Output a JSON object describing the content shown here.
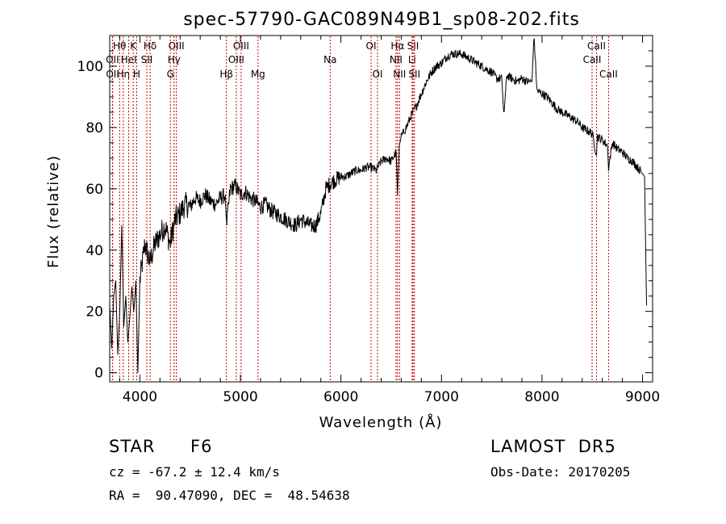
{
  "chart_data": {
    "type": "line",
    "title": "spec-57790-GAC089N49B1_sp08-202.fits",
    "xlabel": "Wavelength (Å)",
    "ylabel": "Flux (relative)",
    "xlim": [
      3700,
      9100
    ],
    "ylim": [
      -3,
      110
    ],
    "x_ticks": [
      4000,
      5000,
      6000,
      7000,
      8000,
      9000
    ],
    "x_minor_step": 200,
    "y_ticks": [
      0,
      20,
      40,
      60,
      80,
      100
    ],
    "y_minor_step": 5,
    "line_color": "#000000",
    "marker_color": "#cc0000",
    "series": [
      {
        "x": [
          3700,
          3720,
          3740,
          3760,
          3780,
          3800,
          3820,
          3840,
          3860,
          3880,
          3900,
          3920,
          3940,
          3960,
          3980,
          4000,
          4050,
          4100,
          4150,
          4200,
          4250,
          4300,
          4350,
          4400,
          4450,
          4500,
          4550,
          4600,
          4650,
          4700,
          4750,
          4800,
          4850,
          4861,
          4900,
          4950,
          5000,
          5050,
          5100,
          5150,
          5200,
          5250,
          5300,
          5350,
          5400,
          5450,
          5500,
          5550,
          5600,
          5650,
          5700,
          5750,
          5800,
          5850,
          5900,
          5950,
          6000,
          6050,
          6100,
          6150,
          6200,
          6250,
          6300,
          6350,
          6400,
          6450,
          6500,
          6550,
          6563,
          6580,
          6600,
          6650,
          6700,
          6750,
          6800,
          6850,
          6900,
          6950,
          7000,
          7050,
          7100,
          7150,
          7200,
          7250,
          7300,
          7350,
          7400,
          7450,
          7500,
          7550,
          7600,
          7620,
          7650,
          7700,
          7750,
          7800,
          7850,
          7900,
          7920,
          7950,
          8000,
          8050,
          8100,
          8150,
          8200,
          8250,
          8300,
          8350,
          8400,
          8450,
          8500,
          8542,
          8550,
          8600,
          8650,
          8662,
          8700,
          8750,
          8800,
          8850,
          8900,
          8950,
          9000,
          9020,
          9040
        ],
        "y": [
          22,
          8,
          25,
          30,
          6,
          20,
          48,
          15,
          25,
          10,
          18,
          28,
          20,
          30,
          0,
          30,
          42,
          36,
          42,
          45,
          48,
          42,
          50,
          52,
          55,
          54,
          57,
          56,
          58,
          56,
          55,
          57,
          58,
          48,
          60,
          61,
          58,
          59,
          57,
          56,
          54,
          55,
          53,
          52,
          51,
          50,
          49,
          48,
          50,
          49,
          48,
          48,
          52,
          60,
          62,
          63,
          64,
          64,
          65,
          66,
          66,
          67,
          67,
          66,
          69,
          70,
          69,
          72,
          58,
          74,
          77,
          80,
          84,
          87,
          91,
          95,
          98,
          100,
          101,
          103,
          104,
          104,
          104,
          103,
          102,
          101,
          100,
          99,
          98,
          96,
          96,
          84,
          97,
          96,
          95,
          96,
          95,
          95,
          110,
          92,
          91,
          90,
          88,
          86,
          85,
          84,
          83,
          82,
          80,
          79,
          78,
          71,
          77,
          76,
          74,
          67,
          75,
          73,
          72,
          70,
          69,
          67,
          65,
          64,
          22
        ]
      }
    ],
    "spectral_lines": [
      {
        "label": "Hθ",
        "x": 3798,
        "row": 0
      },
      {
        "label": "OII",
        "x": 3727,
        "row": 1
      },
      {
        "label": "OII",
        "x": 3729,
        "row": 2
      },
      {
        "label": "Hη",
        "x": 3835,
        "row": 2
      },
      {
        "label": "K",
        "x": 3934,
        "row": 0
      },
      {
        "label": "HeI",
        "x": 3889,
        "row": 1
      },
      {
        "label": "H",
        "x": 3968,
        "row": 2
      },
      {
        "label": "Hδ",
        "x": 4102,
        "row": 0
      },
      {
        "label": "SII",
        "x": 4069,
        "row": 1
      },
      {
        "label": "OIII",
        "x": 4363,
        "row": 0
      },
      {
        "label": "Hγ",
        "x": 4340,
        "row": 1
      },
      {
        "label": "G",
        "x": 4304,
        "row": 2
      },
      {
        "label": "OIII",
        "x": 5007,
        "row": 0
      },
      {
        "label": "OIII",
        "x": 4959,
        "row": 1
      },
      {
        "label": "Hβ",
        "x": 4861,
        "row": 2
      },
      {
        "label": "Mg",
        "x": 5175,
        "row": 2
      },
      {
        "label": "Na",
        "x": 5893,
        "row": 1
      },
      {
        "label": "OI",
        "x": 6300,
        "row": 0
      },
      {
        "label": "OI",
        "x": 6364,
        "row": 2
      },
      {
        "label": "Hα",
        "x": 6563,
        "row": 0
      },
      {
        "label": "NII",
        "x": 6548,
        "row": 1
      },
      {
        "label": "NII",
        "x": 6583,
        "row": 2
      },
      {
        "label": "SII",
        "x": 6717,
        "row": 0
      },
      {
        "label": "Li",
        "x": 6708,
        "row": 1
      },
      {
        "label": "SII",
        "x": 6731,
        "row": 2
      },
      {
        "label": "CaII",
        "x": 8542,
        "row": 0
      },
      {
        "label": "CaII",
        "x": 8498,
        "row": 1
      },
      {
        "label": "CaII",
        "x": 8662,
        "row": 2
      }
    ]
  },
  "info": {
    "class_label": "STAR",
    "subclass": "F6",
    "survey": "LAMOST  DR5",
    "cz": "cz = -67.2 ± 12.4 km/s",
    "obs_date": "Obs-Date: 20170205",
    "coords": "RA =  90.47090, DEC =  48.54638"
  }
}
